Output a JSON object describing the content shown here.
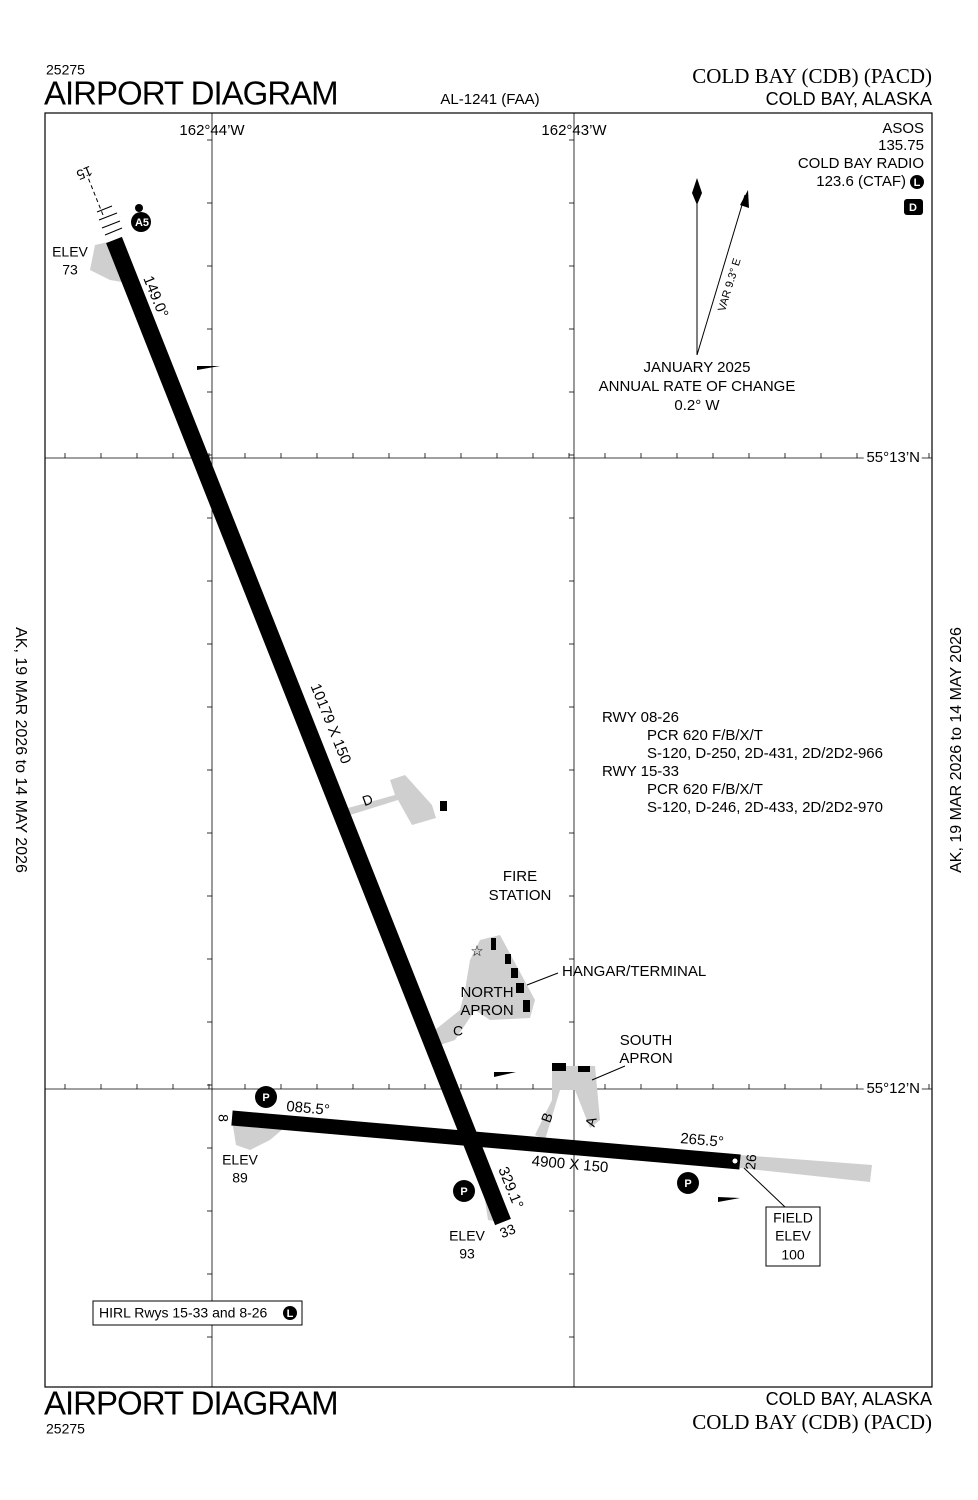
{
  "header": {
    "number": "25275",
    "title": "AIRPORT DIAGRAM",
    "chart_id": "AL-1241 (FAA)",
    "airport": "COLD BAY (CDB) (PACD)",
    "location": "COLD BAY, ALASKA"
  },
  "coordinates": {
    "lon_west": "162°44’W",
    "lon_east": "162°43’W",
    "lat_north": "55°13’N",
    "lat_south": "55°12’N"
  },
  "communications": {
    "lines": [
      "ASOS",
      "135.75",
      "COLD BAY RADIO",
      "123.6 (CTAF)"
    ],
    "ctaf_icon": "L",
    "dpc_icon": "D"
  },
  "magnetic_variation": {
    "label": "VAR 9.3° E",
    "lines": [
      "JANUARY 2025",
      "ANNUAL RATE OF CHANGE",
      "0.2° W"
    ]
  },
  "runway_15_33": {
    "end_15": "15",
    "heading_15": "149.0°",
    "elev_15": [
      "ELEV",
      "73"
    ],
    "dimensions": "10179 X 150",
    "end_33": "33",
    "heading_33": "329.1°",
    "elev_33": [
      "ELEV",
      "93"
    ],
    "approach_icon": "A5"
  },
  "runway_8_26": {
    "end_8": "8",
    "heading_8": "085.5°",
    "elev_8": [
      "ELEV",
      "89"
    ],
    "dimensions": "4900 X 150",
    "end_26": "26",
    "heading_26": "265.5°",
    "field_elev": [
      "FIELD",
      "ELEV",
      "100"
    ]
  },
  "taxiways": {
    "d": "D",
    "c": "C",
    "b": "B",
    "a": "A"
  },
  "features": {
    "fire_station": [
      "FIRE",
      "STATION"
    ],
    "hangar": "HANGAR/TERMINAL",
    "north_apron": [
      "NORTH",
      "APRON"
    ],
    "south_apron": [
      "SOUTH",
      "APRON"
    ],
    "parking": [
      "P",
      "P",
      "P"
    ]
  },
  "runway_info": [
    "RWY 08-26",
    "PCR 620 F/B/X/T",
    "S-120, D-250, 2D-431, 2D/2D2-966",
    "RWY 15-33",
    "PCR 620 F/B/X/T",
    "S-120, D-246, 2D-433, 2D/2D2-970"
  ],
  "lighting": {
    "text": "HIRL Rwys 15-33 and 8-26",
    "icon": "L"
  },
  "validity": {
    "left": "AK,  19 MAR 2026  to  14 MAY 2026",
    "right": "AK,  19 MAR 2026  to  14 MAY 2026"
  },
  "footer": {
    "title": "AIRPORT DIAGRAM",
    "number": "25275",
    "location": "COLD BAY, ALASKA",
    "airport": "COLD BAY (CDB) (PACD)"
  }
}
